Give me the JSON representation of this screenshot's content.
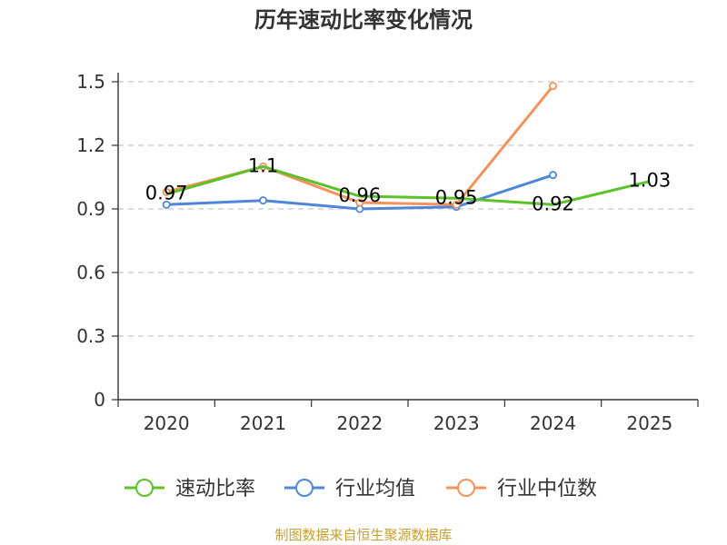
{
  "chart_data": {
    "type": "line",
    "title": "历年速动比率变化情况",
    "categories": [
      "2020",
      "2021",
      "2022",
      "2023",
      "2024",
      "2025"
    ],
    "y_ticks": [
      "0",
      "0.3",
      "0.6",
      "0.9",
      "1.2",
      "1.5"
    ],
    "ylim": [
      0,
      1.5
    ],
    "grid": true,
    "legend_position": "bottom",
    "series": [
      {
        "name": "速动比率",
        "color": "#5cc22a",
        "values": [
          0.97,
          1.1,
          0.96,
          0.95,
          0.92,
          1.03
        ],
        "labels": [
          "0.97",
          "1.1",
          "0.96",
          "0.95",
          "0.92",
          "1.03"
        ]
      },
      {
        "name": "行业均值",
        "color": "#4f86d9",
        "values": [
          0.92,
          0.94,
          0.9,
          0.91,
          1.06,
          null
        ]
      },
      {
        "name": "行业中位数",
        "color": "#f4925c",
        "values": [
          0.98,
          1.1,
          0.93,
          0.92,
          1.48,
          null
        ]
      }
    ]
  },
  "source": "制图数据来自恒生聚源数据库"
}
